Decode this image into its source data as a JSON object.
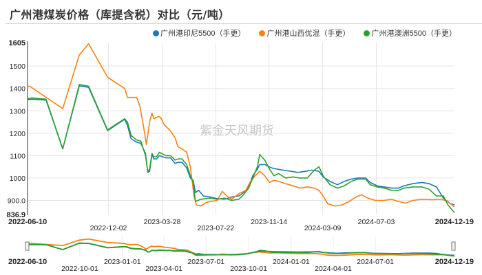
{
  "title": "广州港煤炭价格（库提含税）对比（元/吨）",
  "watermark": "紫金天风期货",
  "legend": [
    {
      "label": "广州港印尼5500（手更）",
      "color": "#1f77b4"
    },
    {
      "label": "广州港山西优混（手更）",
      "color": "#ff7f0e"
    },
    {
      "label": "广州港澳洲5500（手更）",
      "color": "#2ca02c"
    }
  ],
  "chart_data": {
    "type": "line",
    "title": "广州港煤炭价格（库提含税）对比（元/吨）",
    "xlabel": "",
    "ylabel": "",
    "ylim": [
      836.9,
      1605
    ],
    "y_ticks": [
      "1605",
      "1500",
      "1400",
      "1300",
      "1200",
      "1100",
      "1000",
      "900.0",
      "836.9"
    ],
    "x_range": [
      "2022-06-10",
      "2024-12-19"
    ],
    "x_ticks": [
      "2022-06-10",
      "2022-12-02",
      "2023-03-28",
      "2023-07-22",
      "2023-11-14",
      "2024-03-09",
      "2024-07-03",
      "2024-12-19"
    ],
    "grid": true,
    "legend_position": "top",
    "series": [
      {
        "name": "广州港印尼5500（手更）",
        "color": "#1f77b4",
        "points": [
          [
            "2022-06-10",
            1350
          ],
          [
            "2022-06-20",
            1352
          ],
          [
            "2022-07-20",
            1348
          ],
          [
            "2022-08-25",
            1130
          ],
          [
            "2022-09-30",
            1412
          ],
          [
            "2022-10-20",
            1405
          ],
          [
            "2022-11-30",
            1212
          ],
          [
            "2023-01-06",
            1262
          ],
          [
            "2023-01-12",
            1235
          ],
          [
            "2023-01-20",
            1175
          ],
          [
            "2023-02-01",
            1160
          ],
          [
            "2023-02-10",
            1155
          ],
          [
            "2023-02-20",
            1110
          ],
          [
            "2023-02-25",
            1025
          ],
          [
            "2023-03-01",
            1030
          ],
          [
            "2023-03-06",
            1105
          ],
          [
            "2023-03-10",
            1085
          ],
          [
            "2023-03-16",
            1085
          ],
          [
            "2023-03-22",
            1100
          ],
          [
            "2023-04-05",
            1090
          ],
          [
            "2023-04-15",
            1090
          ],
          [
            "2023-04-25",
            1065
          ],
          [
            "2023-05-01",
            1070
          ],
          [
            "2023-05-10",
            1070
          ],
          [
            "2023-05-20",
            1045
          ],
          [
            "2023-05-28",
            1000
          ],
          [
            "2023-06-03",
            990
          ],
          [
            "2023-06-08",
            935
          ],
          [
            "2023-06-15",
            945
          ],
          [
            "2023-06-25",
            920
          ],
          [
            "2023-07-10",
            915
          ],
          [
            "2023-07-25",
            908
          ],
          [
            "2023-08-10",
            905
          ],
          [
            "2023-08-25",
            915
          ],
          [
            "2023-09-10",
            920
          ],
          [
            "2023-09-20",
            935
          ],
          [
            "2023-10-01",
            960
          ],
          [
            "2023-10-10",
            1010
          ],
          [
            "2023-10-20",
            1040
          ],
          [
            "2023-10-25",
            1060
          ],
          [
            "2023-11-05",
            1060
          ],
          [
            "2023-11-20",
            1045
          ],
          [
            "2023-12-01",
            1040
          ],
          [
            "2023-12-15",
            1035
          ],
          [
            "2024-01-01",
            1030
          ],
          [
            "2024-01-15",
            1025
          ],
          [
            "2024-02-01",
            1030
          ],
          [
            "2024-02-15",
            1035
          ],
          [
            "2024-03-01",
            1030
          ],
          [
            "2024-03-10",
            1005
          ],
          [
            "2024-03-25",
            985
          ],
          [
            "2024-04-10",
            970
          ],
          [
            "2024-04-25",
            985
          ],
          [
            "2024-05-10",
            995
          ],
          [
            "2024-05-25",
            1000
          ],
          [
            "2024-06-10",
            1000
          ],
          [
            "2024-06-20",
            980
          ],
          [
            "2024-07-05",
            965
          ],
          [
            "2024-07-20",
            960
          ],
          [
            "2024-08-05",
            955
          ],
          [
            "2024-08-20",
            955
          ],
          [
            "2024-09-01",
            965
          ],
          [
            "2024-09-20",
            975
          ],
          [
            "2024-10-10",
            980
          ],
          [
            "2024-10-25",
            975
          ],
          [
            "2024-11-10",
            960
          ],
          [
            "2024-11-25",
            910
          ],
          [
            "2024-12-10",
            885
          ],
          [
            "2024-12-19",
            880
          ]
        ]
      },
      {
        "name": "广州港山西优混（手更）",
        "color": "#ff7f0e",
        "points": [
          [
            "2022-06-10",
            1410
          ],
          [
            "2022-06-15",
            1410
          ],
          [
            "2022-08-25",
            1310
          ],
          [
            "2022-09-30",
            1550
          ],
          [
            "2022-10-20",
            1600
          ],
          [
            "2022-11-30",
            1450
          ],
          [
            "2023-01-06",
            1400
          ],
          [
            "2023-01-12",
            1360
          ],
          [
            "2023-02-01",
            1360
          ],
          [
            "2023-02-08",
            1320
          ],
          [
            "2023-02-15",
            1240
          ],
          [
            "2023-02-22",
            1150
          ],
          [
            "2023-03-01",
            1250
          ],
          [
            "2023-03-06",
            1290
          ],
          [
            "2023-03-10",
            1265
          ],
          [
            "2023-03-20",
            1275
          ],
          [
            "2023-03-25",
            1270
          ],
          [
            "2023-04-01",
            1240
          ],
          [
            "2023-04-15",
            1210
          ],
          [
            "2023-04-25",
            1180
          ],
          [
            "2023-05-01",
            1140
          ],
          [
            "2023-05-10",
            1130
          ],
          [
            "2023-05-20",
            1115
          ],
          [
            "2023-05-28",
            1050
          ],
          [
            "2023-06-05",
            920
          ],
          [
            "2023-06-10",
            880
          ],
          [
            "2023-06-20",
            875
          ],
          [
            "2023-07-01",
            890
          ],
          [
            "2023-07-10",
            895
          ],
          [
            "2023-07-25",
            900
          ],
          [
            "2023-08-05",
            940
          ],
          [
            "2023-08-15",
            920
          ],
          [
            "2023-08-25",
            905
          ],
          [
            "2023-09-10",
            930
          ],
          [
            "2023-09-25",
            945
          ],
          [
            "2023-10-05",
            985
          ],
          [
            "2023-10-15",
            1010
          ],
          [
            "2023-10-25",
            1030
          ],
          [
            "2023-11-05",
            1010
          ],
          [
            "2023-11-15",
            980
          ],
          [
            "2023-11-25",
            990
          ],
          [
            "2023-12-05",
            985
          ],
          [
            "2023-12-20",
            975
          ],
          [
            "2024-01-05",
            965
          ],
          [
            "2024-01-20",
            955
          ],
          [
            "2024-02-05",
            960
          ],
          [
            "2024-02-20",
            955
          ],
          [
            "2024-03-01",
            945
          ],
          [
            "2024-03-10",
            920
          ],
          [
            "2024-03-20",
            885
          ],
          [
            "2024-04-05",
            875
          ],
          [
            "2024-04-20",
            880
          ],
          [
            "2024-05-05",
            895
          ],
          [
            "2024-05-20",
            915
          ],
          [
            "2024-06-01",
            925
          ],
          [
            "2024-06-15",
            910
          ],
          [
            "2024-07-01",
            900
          ],
          [
            "2024-07-20",
            900
          ],
          [
            "2024-08-05",
            905
          ],
          [
            "2024-08-20",
            895
          ],
          [
            "2024-09-05",
            888
          ],
          [
            "2024-09-20",
            900
          ],
          [
            "2024-10-10",
            905
          ],
          [
            "2024-11-01",
            903
          ],
          [
            "2024-11-20",
            905
          ],
          [
            "2024-12-05",
            895
          ],
          [
            "2024-12-19",
            870
          ]
        ]
      },
      {
        "name": "广州港澳洲5500（手更）",
        "color": "#2ca02c",
        "points": [
          [
            "2022-06-10",
            1355
          ],
          [
            "2022-06-20",
            1358
          ],
          [
            "2022-07-20",
            1352
          ],
          [
            "2022-08-25",
            1130
          ],
          [
            "2022-09-30",
            1418
          ],
          [
            "2022-10-20",
            1410
          ],
          [
            "2022-11-30",
            1215
          ],
          [
            "2023-01-06",
            1265
          ],
          [
            "2023-01-12",
            1250
          ],
          [
            "2023-01-20",
            1190
          ],
          [
            "2023-02-01",
            1170
          ],
          [
            "2023-02-10",
            1165
          ],
          [
            "2023-02-20",
            1100
          ],
          [
            "2023-02-25",
            1030
          ],
          [
            "2023-03-01",
            1040
          ],
          [
            "2023-03-06",
            1110
          ],
          [
            "2023-03-10",
            1095
          ],
          [
            "2023-03-16",
            1095
          ],
          [
            "2023-03-22",
            1115
          ],
          [
            "2023-04-05",
            1100
          ],
          [
            "2023-04-15",
            1100
          ],
          [
            "2023-04-25",
            1080
          ],
          [
            "2023-05-01",
            1085
          ],
          [
            "2023-05-10",
            1085
          ],
          [
            "2023-05-20",
            1060
          ],
          [
            "2023-05-28",
            1010
          ],
          [
            "2023-06-03",
            980
          ],
          [
            "2023-06-08",
            895
          ],
          [
            "2023-06-20",
            905
          ],
          [
            "2023-07-10",
            910
          ],
          [
            "2023-07-25",
            905
          ],
          [
            "2023-08-10",
            910
          ],
          [
            "2023-08-25",
            900
          ],
          [
            "2023-09-10",
            905
          ],
          [
            "2023-09-20",
            925
          ],
          [
            "2023-10-01",
            955
          ],
          [
            "2023-10-10",
            1000
          ],
          [
            "2023-10-20",
            1050
          ],
          [
            "2023-10-25",
            1105
          ],
          [
            "2023-11-05",
            1080
          ],
          [
            "2023-11-15",
            1040
          ],
          [
            "2023-11-25",
            1010
          ],
          [
            "2023-12-05",
            1020
          ],
          [
            "2023-12-20",
            1000
          ],
          [
            "2024-01-05",
            1005
          ],
          [
            "2024-01-20",
            1000
          ],
          [
            "2024-02-05",
            1000
          ],
          [
            "2024-02-20",
            1035
          ],
          [
            "2024-03-01",
            1050
          ],
          [
            "2024-03-10",
            1010
          ],
          [
            "2024-03-25",
            970
          ],
          [
            "2024-04-10",
            955
          ],
          [
            "2024-04-25",
            965
          ],
          [
            "2024-05-10",
            985
          ],
          [
            "2024-05-25",
            995
          ],
          [
            "2024-06-10",
            995
          ],
          [
            "2024-06-20",
            970
          ],
          [
            "2024-07-05",
            960
          ],
          [
            "2024-07-20",
            955
          ],
          [
            "2024-08-05",
            945
          ],
          [
            "2024-08-20",
            945
          ],
          [
            "2024-09-01",
            955
          ],
          [
            "2024-09-20",
            960
          ],
          [
            "2024-10-10",
            960
          ],
          [
            "2024-10-25",
            950
          ],
          [
            "2024-11-10",
            920
          ],
          [
            "2024-11-25",
            920
          ],
          [
            "2024-12-05",
            880
          ],
          [
            "2024-12-19",
            845
          ]
        ]
      }
    ]
  },
  "navigator": {
    "x_ticks": [
      "2022-06-10",
      "2022-10-01",
      "2023-01-01",
      "2023-04-01",
      "2023-07-01",
      "2023-10-01",
      "2024-01-01",
      "2024-04-01",
      "2024-07-01",
      "2024-12-19"
    ],
    "range": [
      "2022-06-10",
      "2024-12-19"
    ]
  }
}
